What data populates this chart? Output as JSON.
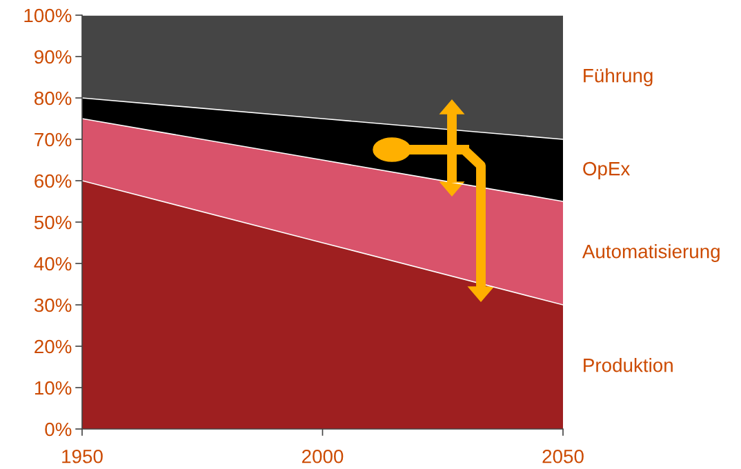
{
  "chart_data": {
    "type": "area",
    "stacked": true,
    "x": [
      1950,
      2000,
      2050
    ],
    "series": [
      {
        "name": "Produktion",
        "color": "#9e1f20",
        "values": [
          60,
          45,
          30
        ]
      },
      {
        "name": "Automatisierung",
        "color": "#d9536b",
        "values": [
          15,
          20,
          25
        ]
      },
      {
        "name": "OpEx",
        "color": "#000000",
        "values": [
          5,
          10,
          15
        ]
      },
      {
        "name": "Führung",
        "color": "#454545",
        "values": [
          20,
          25,
          30
        ]
      }
    ],
    "xlim": [
      1950,
      2050
    ],
    "xticks": [
      1950,
      2000,
      2050
    ],
    "ylim": [
      0,
      100
    ],
    "yticks": [
      {
        "value": 0,
        "label": "0%"
      },
      {
        "value": 10,
        "label": "10%"
      },
      {
        "value": 20,
        "label": "20%"
      },
      {
        "value": 30,
        "label": "30%"
      },
      {
        "value": 40,
        "label": "40%"
      },
      {
        "value": 50,
        "label": "50%"
      },
      {
        "value": 60,
        "label": "60%"
      },
      {
        "value": 70,
        "label": "70%"
      },
      {
        "value": 80,
        "label": "80%"
      },
      {
        "value": 90,
        "label": "90%"
      },
      {
        "value": 100,
        "label": "100%"
      }
    ],
    "grid": false,
    "legend": false
  }
}
